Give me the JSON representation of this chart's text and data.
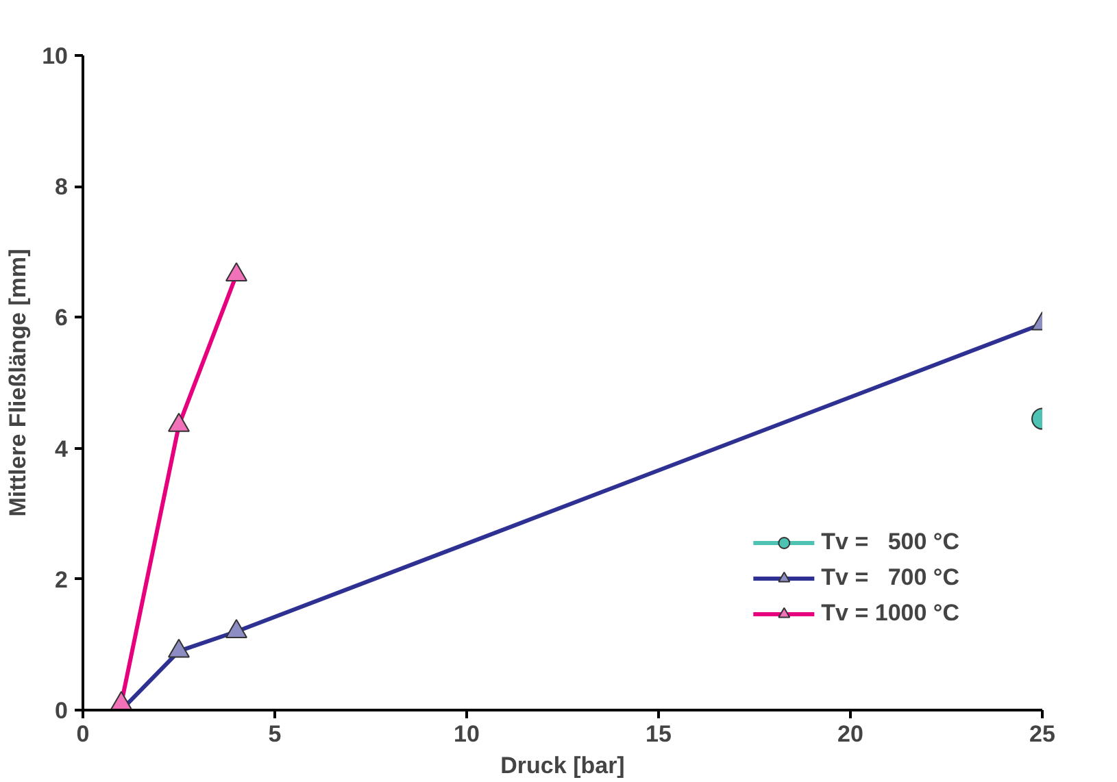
{
  "chart_data": {
    "type": "line",
    "xlabel": "Druck [bar]",
    "ylabel": "Mittlere Fließlänge [mm]",
    "xlim": [
      0,
      25
    ],
    "ylim": [
      0,
      10
    ],
    "xticks": [
      0,
      5,
      10,
      15,
      20,
      25
    ],
    "yticks": [
      0,
      2,
      4,
      6,
      8,
      10
    ],
    "grid": false,
    "legend": "bottom right",
    "series": [
      {
        "name": "Tv =   500 °C",
        "color": "#4fc3b3",
        "marker": "circle",
        "x": [
          25
        ],
        "values": [
          4.45
        ]
      },
      {
        "name": "Tv =   700 °C",
        "color": "#2e3192",
        "marker": "triangle",
        "x": [
          1,
          2.5,
          4,
          25
        ],
        "values": [
          0,
          0.9,
          1.2,
          5.9
        ]
      },
      {
        "name": "Tv = 1000 °C",
        "color": "#e6007e",
        "marker": "triangle",
        "x": [
          1,
          2.5,
          4
        ],
        "values": [
          0.1,
          4.35,
          6.65
        ]
      }
    ]
  }
}
